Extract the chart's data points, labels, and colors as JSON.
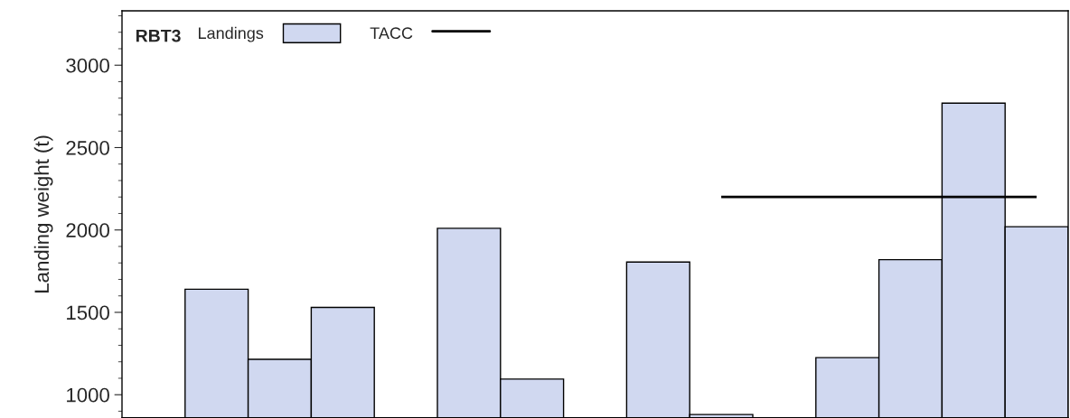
{
  "chart_data": {
    "type": "bar",
    "ylabel": "Landing weight (t)",
    "legend_title": "RBT3",
    "categories": [
      null,
      null,
      null,
      null,
      null,
      null,
      null,
      null,
      null,
      null,
      null,
      null,
      null,
      null,
      null
    ],
    "series": [
      {
        "name": "Landings",
        "color": "#d0d8f0",
        "values": [
          null,
          1640,
          1215,
          1530,
          null,
          2010,
          1095,
          null,
          1805,
          880,
          null,
          1225,
          1820,
          2770,
          2020
        ]
      },
      {
        "name": "TACC",
        "type": "line",
        "color": "#000000",
        "values": [
          null,
          null,
          null,
          null,
          null,
          null,
          null,
          null,
          null,
          2200,
          2200,
          2200,
          2200,
          2200,
          2200
        ]
      }
    ],
    "ylim": [
      860,
      3330
    ],
    "yticks": [
      {
        "value": 900,
        "label": null
      },
      1000,
      {
        "value": 1100,
        "label": null
      },
      {
        "value": 1200,
        "label": null
      },
      {
        "value": 1300,
        "label": null
      },
      {
        "value": 1400,
        "label": null
      },
      1500,
      {
        "value": 1600,
        "label": null
      },
      {
        "value": 1700,
        "label": null
      },
      {
        "value": 1800,
        "label": null
      },
      {
        "value": 1900,
        "label": null
      },
      2000,
      {
        "value": 2100,
        "label": null
      },
      {
        "value": 2200,
        "label": null
      },
      {
        "value": 2300,
        "label": null
      },
      {
        "value": 2400,
        "label": null
      },
      2500,
      {
        "value": 2600,
        "label": null
      },
      {
        "value": 2700,
        "label": null
      },
      {
        "value": 2800,
        "label": null
      },
      {
        "value": 2900,
        "label": null
      },
      3000,
      {
        "value": 3100,
        "label": null
      },
      {
        "value": 3200,
        "label": null
      },
      {
        "value": 3300,
        "label": null
      }
    ],
    "tick_labels": "y",
    "grid": false,
    "legend": "top left"
  }
}
